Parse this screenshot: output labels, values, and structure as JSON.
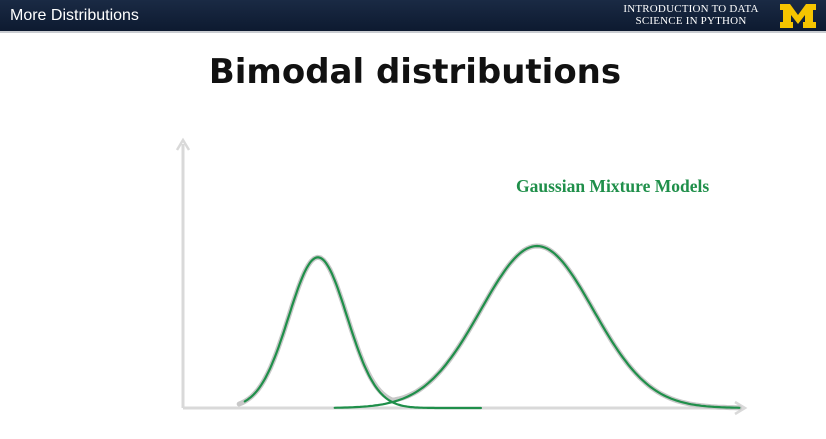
{
  "header": {
    "title": "More Distributions",
    "course_line1": "INTRODUCTION TO DATA",
    "course_line2": "SCIENCE  IN PYTHON",
    "logo_icon": "university-block-m-logo",
    "logo_color": "#f5c400",
    "background": "#13213a"
  },
  "slide": {
    "title": "Bimodal distributions",
    "annotation": "Gaussian Mixture Models"
  },
  "chart_data": {
    "type": "line",
    "axes": {
      "x_arrow": true,
      "y_arrow": true,
      "ticks": false,
      "grid": false
    },
    "series": [
      {
        "kind": "gaussian_component",
        "mean": 0.24,
        "sd": 0.052,
        "height": 0.93,
        "color": "#1f8f4a"
      },
      {
        "kind": "gaussian_component",
        "mean": 0.63,
        "sd": 0.1,
        "height": 1.0,
        "color": "#1f8f4a"
      },
      {
        "kind": "mixture_total",
        "color": "#c8c8c8"
      }
    ]
  }
}
